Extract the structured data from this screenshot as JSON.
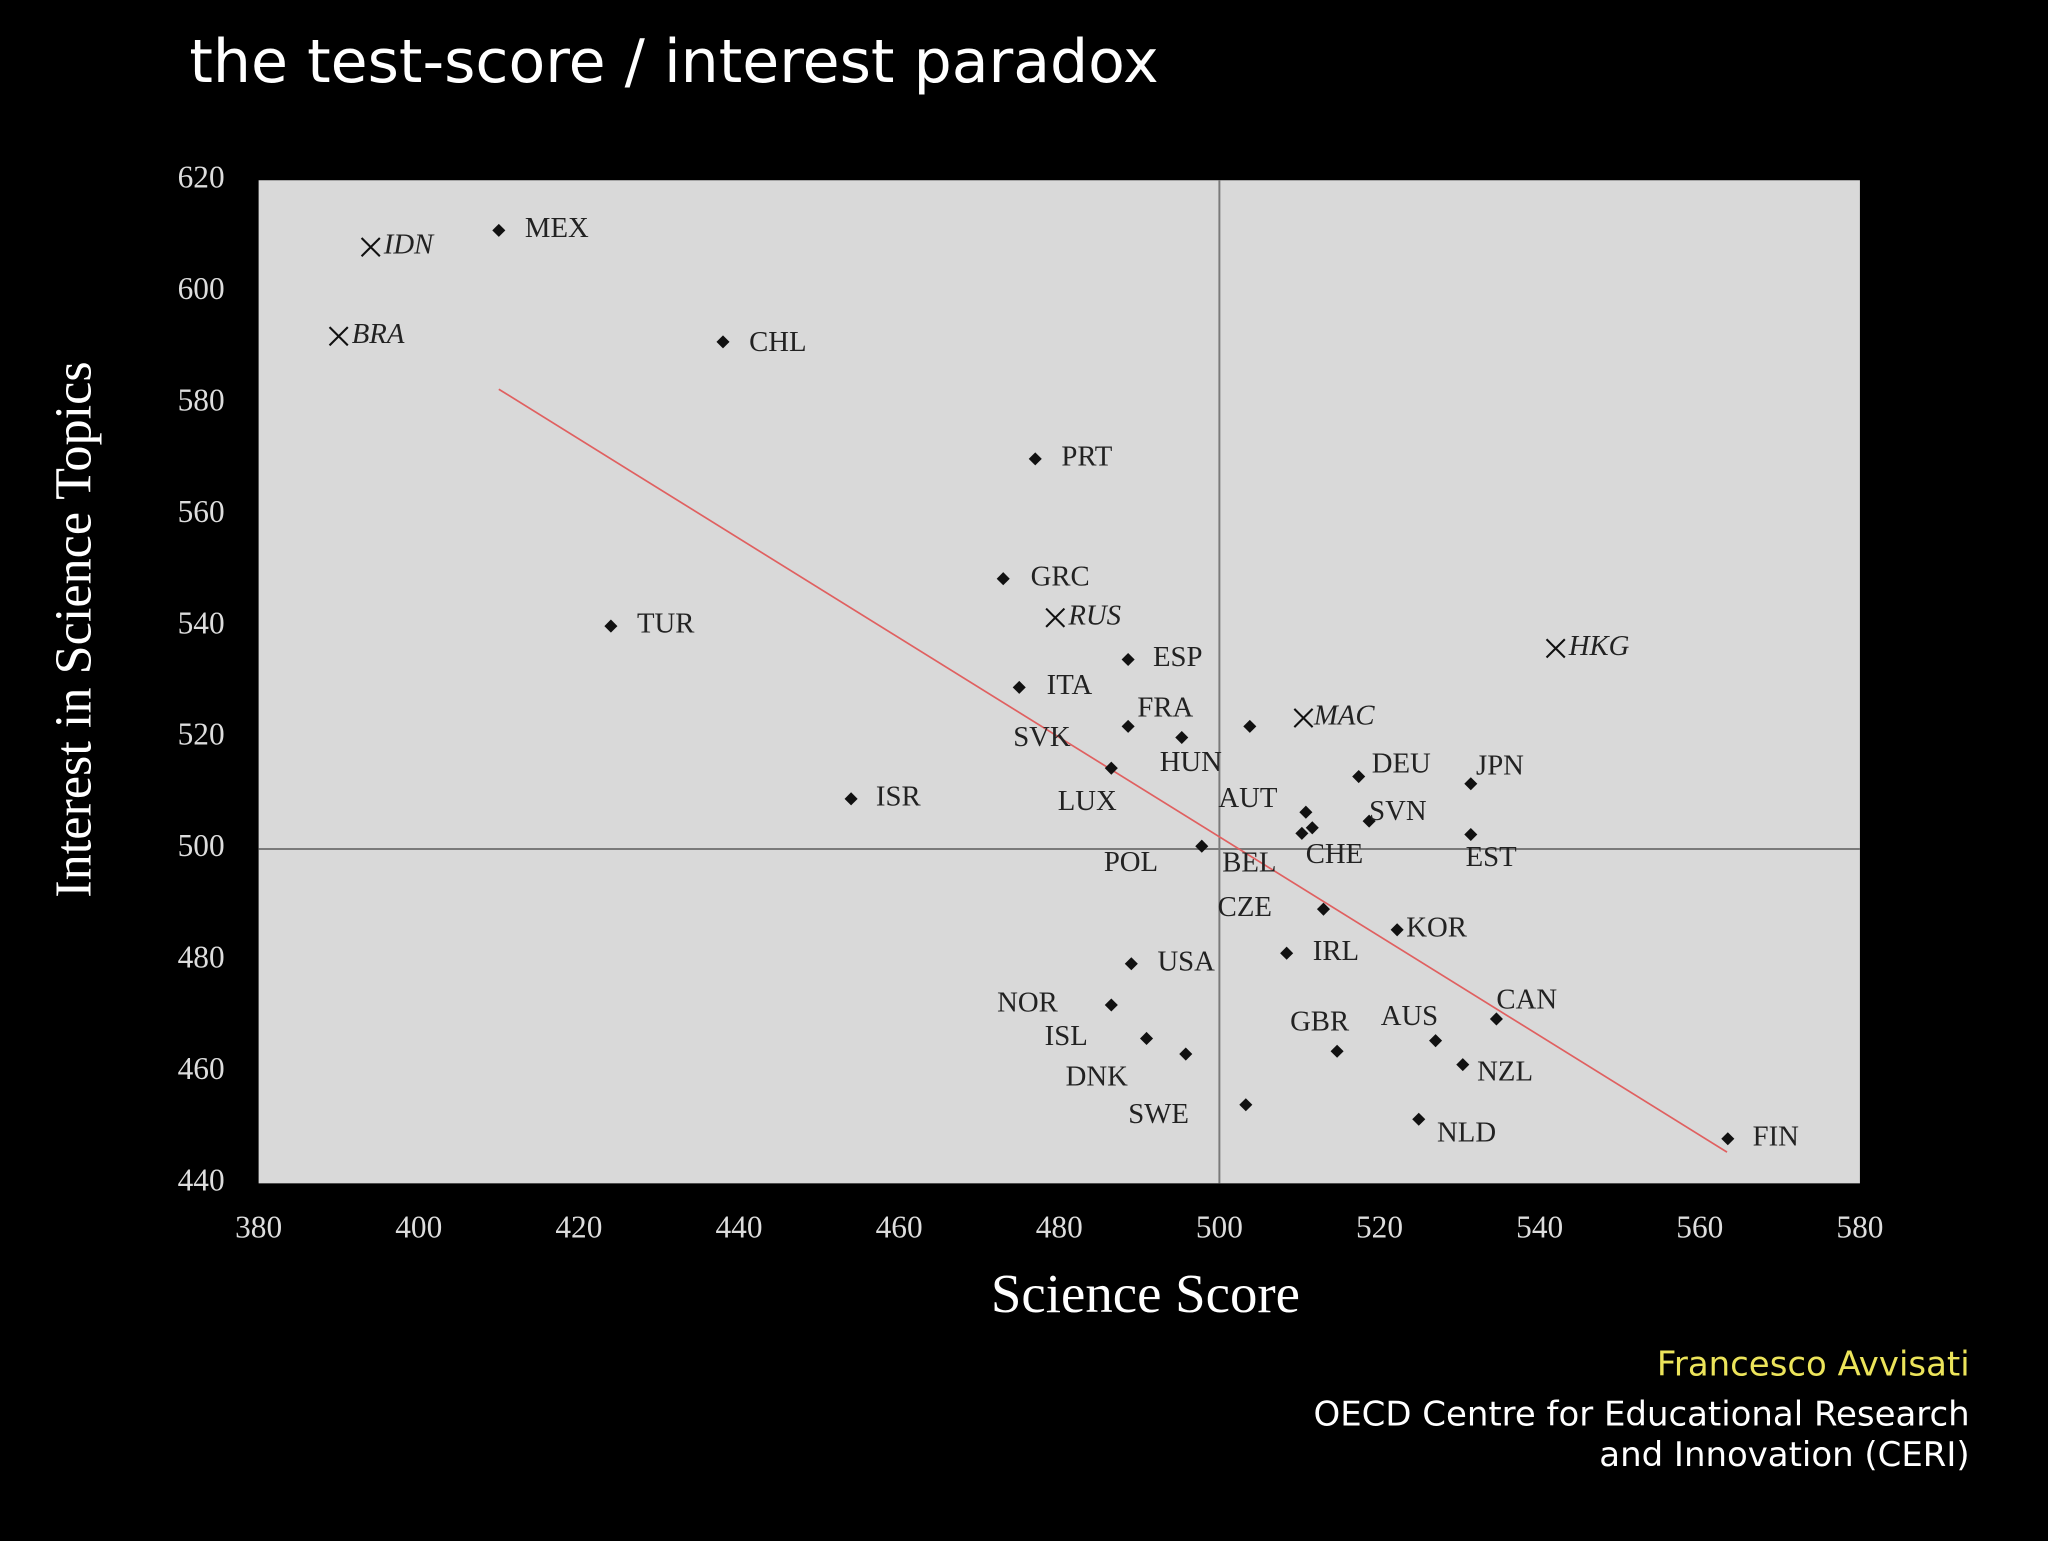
{
  "chart_data": {
    "type": "scatter",
    "title": "the test-score / interest paradox",
    "x_label": "Science Score",
    "y_label": "Interest in Science Topics",
    "xlim": [
      380,
      580
    ],
    "ylim": [
      440,
      620
    ],
    "xticks": [
      380,
      400,
      420,
      440,
      460,
      480,
      500,
      520,
      540,
      560,
      580
    ],
    "yticks": [
      440,
      460,
      480,
      500,
      520,
      540,
      560,
      580,
      600,
      620
    ],
    "grid": false,
    "point_color": "#111111",
    "labels": [
      "MEX",
      "IDN",
      "BRA",
      "CHL",
      "PRT",
      "GRC",
      "RUS",
      "TUR",
      "ESP",
      "HKG",
      "ITA",
      "SVK",
      "FRA",
      "HUN",
      "MAC",
      "LUX",
      "ISR",
      "DEU",
      "JPN",
      "AUT",
      "SVN",
      "CHE",
      "BEL",
      "POL",
      "EST",
      "CZE",
      "KOR",
      "IRL",
      "USA",
      "NOR",
      "CAN",
      "ISL",
      "AUS",
      "GBR",
      "DNK",
      "NZL",
      "SWE",
      "NLD",
      "FIN"
    ],
    "x": [
      410,
      394,
      390,
      438,
      477,
      473,
      479.5,
      424,
      488.6,
      542,
      475,
      488.6,
      495.3,
      503.8,
      510.5,
      486.5,
      454,
      517.4,
      531.4,
      510.8,
      518.7,
      511.6,
      510.3,
      497.8,
      531.4,
      513,
      522.2,
      508.4,
      489,
      486.5,
      534.6,
      490.9,
      527,
      514.7,
      495.8,
      530.4,
      503.3,
      524.9,
      563.5
    ],
    "y": [
      611,
      608,
      592,
      591,
      570,
      548.5,
      541.5,
      540,
      534,
      536,
      529,
      522,
      520,
      522,
      523.5,
      514.5,
      509,
      513,
      511.7,
      506.6,
      505,
      503.8,
      502.8,
      500.5,
      502.6,
      489.2,
      485.5,
      481.3,
      479.4,
      472,
      469.5,
      466,
      465.6,
      463.7,
      463.2,
      461.3,
      454.1,
      451.5,
      448
    ],
    "markers": [
      "diamond",
      "cross",
      "cross",
      "diamond",
      "diamond",
      "diamond",
      "cross",
      "diamond",
      "diamond",
      "cross",
      "diamond",
      "diamond",
      "diamond",
      "diamond",
      "cross",
      "diamond",
      "diamond",
      "diamond",
      "diamond",
      "diamond",
      "diamond",
      "diamond",
      "diamond",
      "diamond",
      "diamond",
      "diamond",
      "diamond",
      "diamond",
      "diamond",
      "diamond",
      "diamond",
      "diamond",
      "diamond",
      "diamond",
      "diamond",
      "diamond",
      "diamond",
      "diamond",
      "diamond"
    ],
    "trendline": {
      "color": "#e06060",
      "x": [
        410,
        563.4
      ],
      "y": [
        582.5,
        445.6
      ]
    },
    "reference_lines": {
      "x": 500,
      "y": 500
    }
  },
  "footer": {
    "author": "Francesco Avvisati",
    "org": [
      "OECD Centre for Educational Research",
      "and Innovation (CERI)"
    ]
  }
}
